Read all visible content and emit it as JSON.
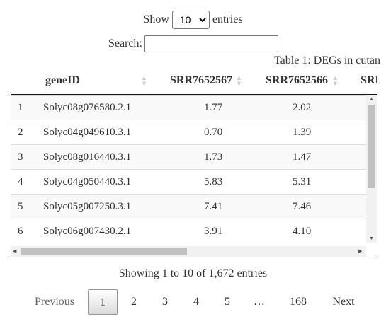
{
  "length": {
    "show_label": "Show",
    "entries_label": "entries",
    "selected": "10",
    "chevron_icon": "chevron-down-icon"
  },
  "search": {
    "label": "Search:",
    "value": "",
    "placeholder": ""
  },
  "table": {
    "caption": "Table 1: DEGs in cutan",
    "columns": [
      "",
      "geneID",
      "SRR7652567",
      "SRR7652566",
      "SRR"
    ],
    "rows": [
      [
        "1",
        "Solyc08g076580.2.1",
        "1.77",
        "2.02"
      ],
      [
        "2",
        "Solyc04g049610.3.1",
        "0.70",
        "1.39"
      ],
      [
        "3",
        "Solyc08g016440.3.1",
        "1.73",
        "1.47"
      ],
      [
        "4",
        "Solyc04g050440.3.1",
        "5.83",
        "5.31"
      ],
      [
        "5",
        "Solyc05g007250.3.1",
        "7.41",
        "7.46"
      ],
      [
        "6",
        "Solyc06g007430.2.1",
        "3.91",
        "4.10"
      ]
    ]
  },
  "info": "Showing 1 to 10 of 1,672 entries",
  "pagination": {
    "previous": "Previous",
    "pages": [
      "1",
      "2",
      "3",
      "4",
      "5",
      "…",
      "168"
    ],
    "current": "1",
    "next": "Next"
  }
}
